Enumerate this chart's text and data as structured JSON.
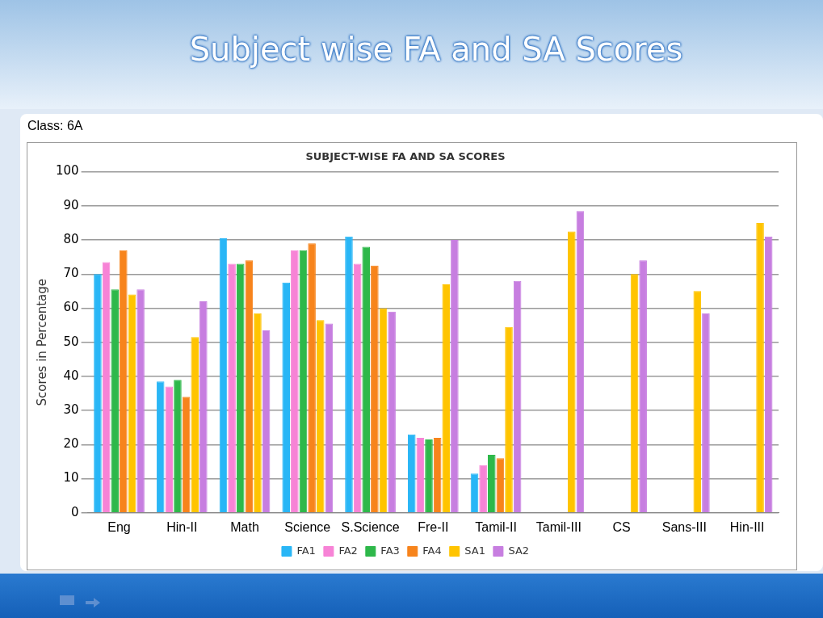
{
  "chart_data": {
    "type": "bar",
    "title": "SUBJECT-WISE FA AND SA SCORES",
    "annotations": [
      "Subject wise FA and SA Scores",
      "Class:  6A"
    ],
    "ylabel": "Scores in Percentage",
    "categories": [
      "Eng",
      "Hin-II",
      "Math",
      "Science",
      "S.Science",
      "Fre-II",
      "Tamil-II",
      "Tamil-III",
      "CS",
      "Sans-III",
      "Hin-III"
    ],
    "series": [
      {
        "name": "FA1",
        "color": "#29b6f6",
        "values": [
          70,
          38.5,
          80.5,
          67.5,
          81,
          23,
          11.5,
          null,
          null,
          null,
          null
        ]
      },
      {
        "name": "FA2",
        "color": "#f783d6",
        "values": [
          73.5,
          37,
          73,
          77,
          73,
          22,
          14,
          null,
          null,
          null,
          null
        ]
      },
      {
        "name": "FA3",
        "color": "#2eb84a",
        "values": [
          65.5,
          39,
          73,
          77,
          78,
          21.5,
          17,
          null,
          null,
          null,
          null
        ]
      },
      {
        "name": "FA4",
        "color": "#f7841c",
        "values": [
          77,
          34,
          74,
          79,
          72.5,
          22,
          16,
          null,
          null,
          null,
          null
        ]
      },
      {
        "name": "SA1",
        "color": "#ffc400",
        "values": [
          64,
          51.5,
          58.5,
          56.5,
          60,
          67,
          54.5,
          82.5,
          70,
          65,
          85
        ]
      },
      {
        "name": "SA2",
        "color": "#c77ee0",
        "values": [
          65.5,
          62,
          53.5,
          55.5,
          59,
          80,
          68,
          88.5,
          74,
          58.5,
          81
        ]
      }
    ],
    "ylim": [
      0,
      100
    ],
    "yticks": [
      0,
      10,
      20,
      30,
      40,
      50,
      60,
      70,
      80,
      90,
      100
    ],
    "grid": "y",
    "legend": "bottom"
  }
}
